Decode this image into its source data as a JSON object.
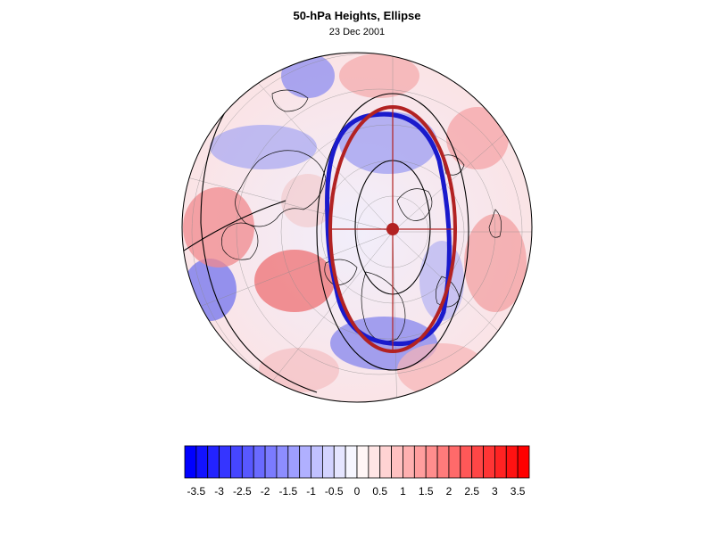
{
  "title": "50-hPa Heights, Ellipse",
  "subtitle": "23 Dec 2001",
  "colorbar": {
    "tick_labels": [
      "-3.5",
      "-3",
      "-2.5",
      "-2",
      "-1.5",
      "-1",
      "-0.5",
      "0",
      "0.5",
      "1",
      "1.5",
      "2",
      "2.5",
      "3",
      "3.5"
    ],
    "min": -3.75,
    "max": 3.75,
    "step": 0.25,
    "negative_color": "#0000ff",
    "positive_color": "#ff0000"
  },
  "overlay": {
    "observed_ellipse_color": "#1a1acc",
    "fitted_ellipse_color": "#b22222",
    "centroid_color": "#b22222"
  }
}
